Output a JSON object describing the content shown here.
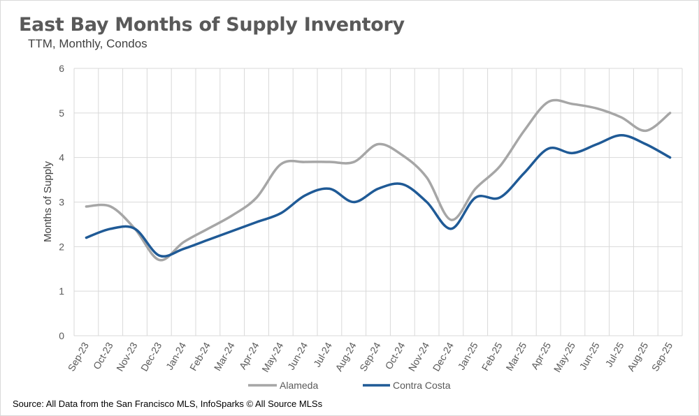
{
  "chart_data": {
    "type": "line",
    "title": "East Bay Months of Supply Inventory",
    "subtitle": "TTM, Monthly, Condos",
    "ylabel": "Months of Supply",
    "xlabel": "",
    "ylim": [
      0,
      6
    ],
    "yticks": [
      0,
      1,
      2,
      3,
      4,
      5,
      6
    ],
    "grid": true,
    "legend_position": "bottom",
    "categories": [
      "Sep-23",
      "Oct-23",
      "Nov-23",
      "Dec-23",
      "Jan-24",
      "Feb-24",
      "Mar-24",
      "Apr-24",
      "May-24",
      "Jun-24",
      "Jul-24",
      "Aug-24",
      "Sep-24",
      "Oct-24",
      "Nov-24",
      "Dec-24",
      "Jan-25",
      "Feb-25",
      "Mar-25",
      "Apr-25",
      "May-25",
      "Jun-25",
      "Jul-25",
      "Aug-25",
      "Sep-25"
    ],
    "series": [
      {
        "name": "Alameda",
        "color": "#a6a6a6",
        "values": [
          2.9,
          2.9,
          2.4,
          1.7,
          2.1,
          2.4,
          2.7,
          3.1,
          3.85,
          3.9,
          3.9,
          3.9,
          4.3,
          4.05,
          3.55,
          2.6,
          3.3,
          3.8,
          4.6,
          5.25,
          5.2,
          5.1,
          4.9,
          4.6,
          5.0
        ]
      },
      {
        "name": "Contra Costa",
        "color": "#1f5a96",
        "values": [
          2.2,
          2.4,
          2.4,
          1.8,
          1.95,
          2.15,
          2.35,
          2.55,
          2.75,
          3.15,
          3.3,
          3.0,
          3.3,
          3.4,
          3.0,
          2.4,
          3.1,
          3.1,
          3.65,
          4.2,
          4.1,
          4.3,
          4.5,
          4.3,
          4.0
        ]
      }
    ]
  },
  "source_note": "Source: All Data from the San Francisco MLS, InfoSparks © All Source MLSs"
}
